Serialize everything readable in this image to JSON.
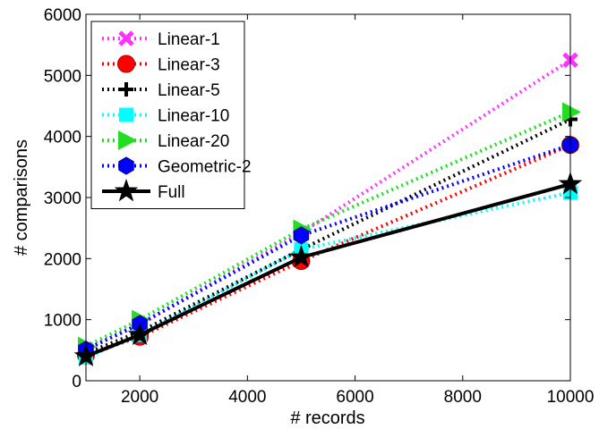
{
  "chart_data": {
    "type": "line",
    "xlabel": "# records",
    "ylabel": "# comparisons",
    "xlim": [
      1000,
      10000
    ],
    "ylim": [
      0,
      6000
    ],
    "xticks": [
      2000,
      4000,
      6000,
      8000,
      10000
    ],
    "yticks": [
      0,
      1000,
      2000,
      3000,
      4000,
      5000,
      6000
    ],
    "grid": false,
    "legend_position": "top-left",
    "x": [
      1000,
      2000,
      5000,
      10000
    ],
    "series": [
      {
        "name": "Linear-1",
        "values": [
          520,
          920,
          2420,
          5250
        ],
        "color": "#ff33ff",
        "marker": "x-mark",
        "style": "dotted"
      },
      {
        "name": "Linear-3",
        "values": [
          420,
          720,
          1960,
          3860
        ],
        "color": "#ff0000",
        "marker": "circle",
        "style": "dotted"
      },
      {
        "name": "Linear-5",
        "values": [
          450,
          800,
          2150,
          4280
        ],
        "color": "#000000",
        "marker": "plus",
        "style": "dotted"
      },
      {
        "name": "Linear-10",
        "values": [
          380,
          750,
          2150,
          3080
        ],
        "color": "#00ffff",
        "marker": "square",
        "style": "dotted"
      },
      {
        "name": "Linear-20",
        "values": [
          560,
          1000,
          2480,
          4400
        ],
        "color": "#22dd22",
        "marker": "triangle-right",
        "style": "dotted"
      },
      {
        "name": "Geometric-2",
        "values": [
          510,
          930,
          2380,
          3860
        ],
        "color": "#0000ff",
        "marker": "hexagon",
        "style": "dotted"
      },
      {
        "name": "Full",
        "values": [
          400,
          750,
          2020,
          3220
        ],
        "color": "#000000",
        "marker": "star",
        "style": "solid"
      }
    ]
  }
}
